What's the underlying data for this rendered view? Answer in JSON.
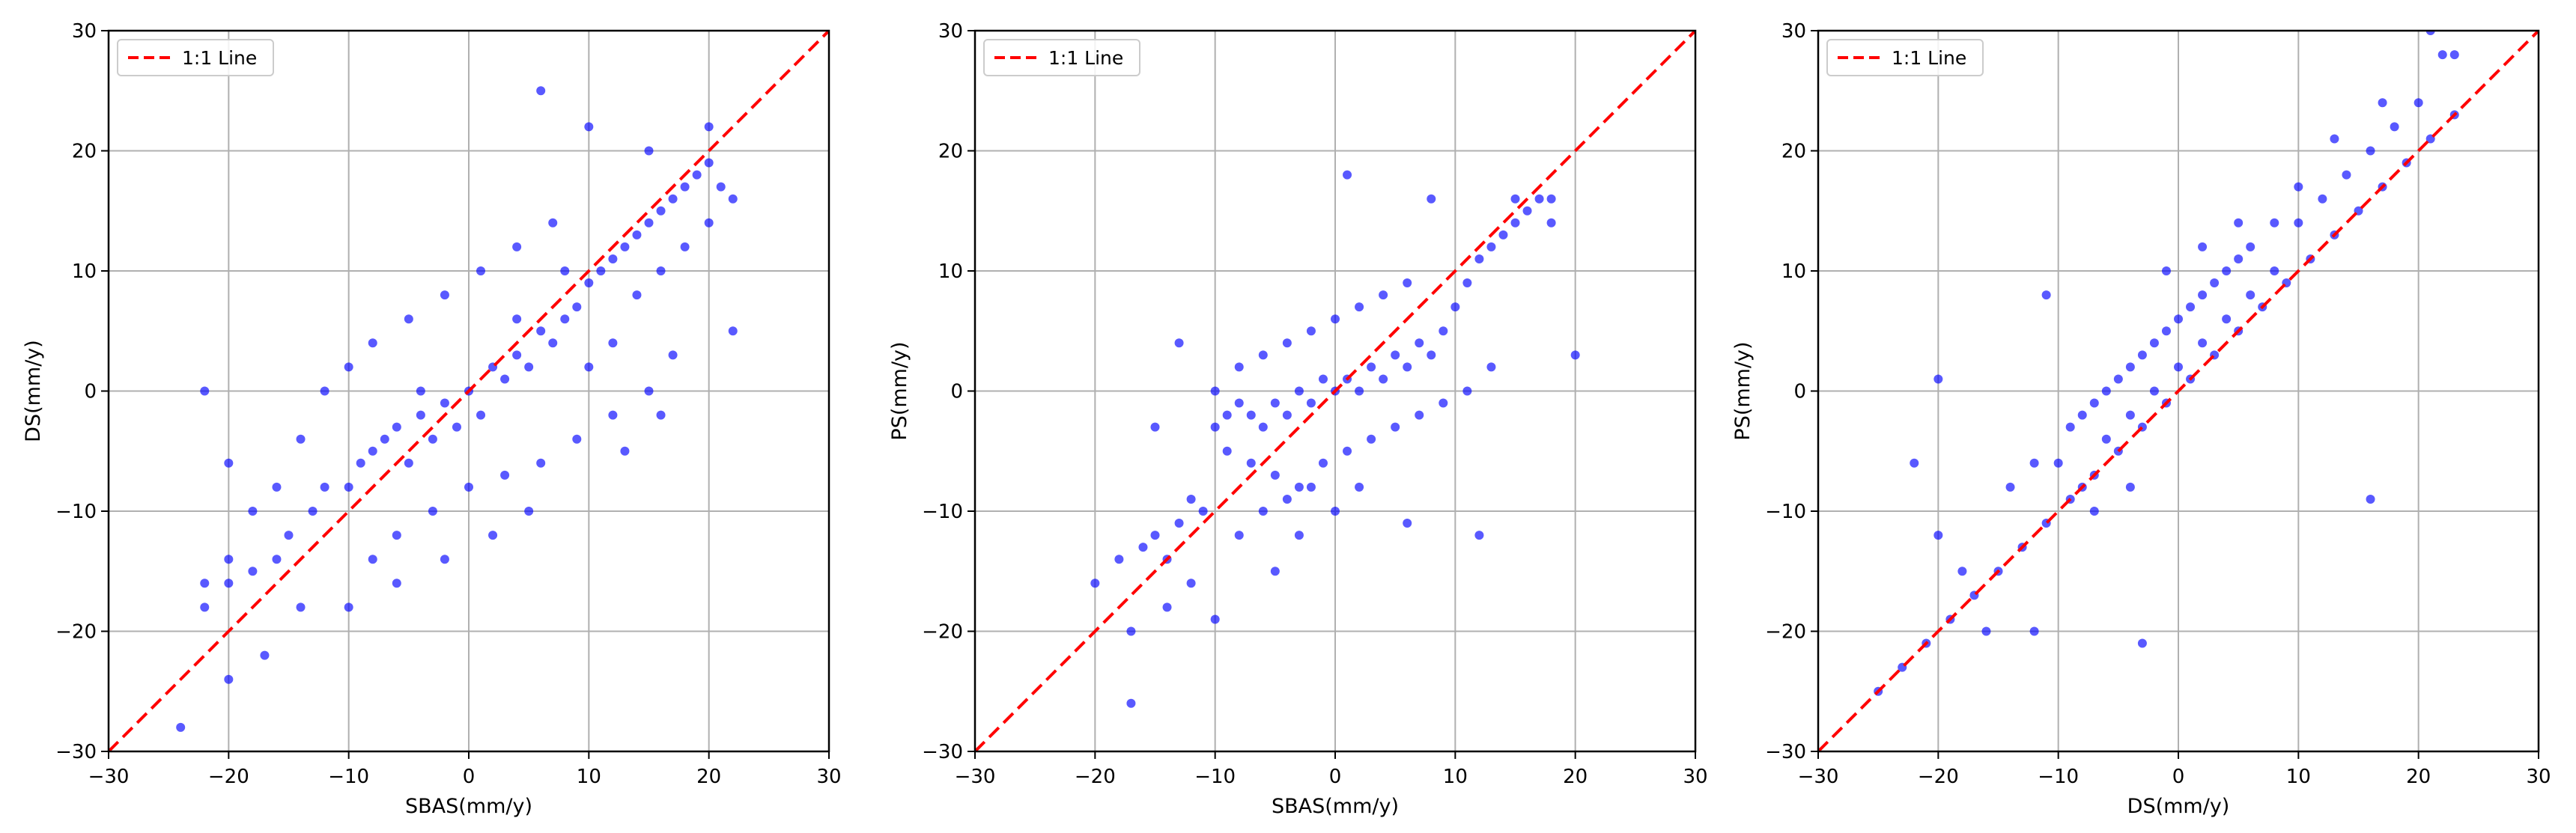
{
  "chart_data": [
    {
      "type": "scatter",
      "xlabel": "SBAS(mm/y)",
      "ylabel": "DS(mm/y)",
      "xlim": [
        -30,
        30
      ],
      "ylim": [
        -30,
        30
      ],
      "xticks": [
        -30,
        -20,
        -10,
        0,
        10,
        20,
        30
      ],
      "yticks": [
        -30,
        -20,
        -10,
        0,
        10,
        20,
        30
      ],
      "grid": true,
      "legend": {
        "position": "top-left",
        "entries": [
          {
            "label": "1:1 Line",
            "color": "#ff0000",
            "style": "dashed"
          }
        ]
      },
      "reference_line": {
        "label": "1:1 Line",
        "x": [
          -30,
          30
        ],
        "y": [
          -30,
          30
        ]
      },
      "series": [
        {
          "color": "#0000ff",
          "points": [
            [
              -22,
              -18
            ],
            [
              -20,
              -16
            ],
            [
              -18,
              -15
            ],
            [
              -16,
              -14
            ],
            [
              -15,
              -12
            ],
            [
              -13,
              -10
            ],
            [
              -12,
              -8
            ],
            [
              -10,
              -8
            ],
            [
              -9,
              -6
            ],
            [
              -8,
              -5
            ],
            [
              -7,
              -4
            ],
            [
              -6,
              -3
            ],
            [
              -5,
              -6
            ],
            [
              -4,
              -2
            ],
            [
              -3,
              -4
            ],
            [
              -2,
              -1
            ],
            [
              -1,
              -3
            ],
            [
              0,
              0
            ],
            [
              1,
              -2
            ],
            [
              2,
              2
            ],
            [
              3,
              1
            ],
            [
              4,
              3
            ],
            [
              5,
              2
            ],
            [
              6,
              5
            ],
            [
              7,
              4
            ],
            [
              8,
              6
            ],
            [
              9,
              7
            ],
            [
              10,
              9
            ],
            [
              11,
              10
            ],
            [
              12,
              11
            ],
            [
              13,
              12
            ],
            [
              14,
              13
            ],
            [
              15,
              14
            ],
            [
              16,
              15
            ],
            [
              17,
              16
            ],
            [
              18,
              17
            ],
            [
              19,
              18
            ],
            [
              20,
              19
            ],
            [
              21,
              17
            ],
            [
              22,
              16
            ],
            [
              -24,
              -28
            ],
            [
              -20,
              -24
            ],
            [
              -17,
              -22
            ],
            [
              -14,
              -18
            ],
            [
              -8,
              -14
            ],
            [
              -6,
              -12
            ],
            [
              -3,
              -10
            ],
            [
              0,
              -8
            ],
            [
              3,
              -7
            ],
            [
              6,
              -6
            ],
            [
              9,
              -4
            ],
            [
              12,
              -2
            ],
            [
              15,
              0
            ],
            [
              -10,
              2
            ],
            [
              -8,
              4
            ],
            [
              -5,
              6
            ],
            [
              -2,
              8
            ],
            [
              1,
              10
            ],
            [
              4,
              12
            ],
            [
              7,
              14
            ],
            [
              -12,
              0
            ],
            [
              -14,
              -4
            ],
            [
              -16,
              -8
            ],
            [
              -18,
              -10
            ],
            [
              -20,
              -14
            ],
            [
              -22,
              -16
            ],
            [
              10,
              2
            ],
            [
              12,
              4
            ],
            [
              14,
              8
            ],
            [
              16,
              10
            ],
            [
              18,
              12
            ],
            [
              20,
              14
            ],
            [
              5,
              -10
            ],
            [
              2,
              -12
            ],
            [
              -2,
              -14
            ],
            [
              -6,
              -16
            ],
            [
              -10,
              -18
            ],
            [
              8,
              10
            ],
            [
              4,
              6
            ],
            [
              -4,
              0
            ],
            [
              6,
              25
            ],
            [
              10,
              22
            ],
            [
              15,
              20
            ],
            [
              20,
              22
            ],
            [
              -22,
              0
            ],
            [
              -20,
              -6
            ],
            [
              13,
              -5
            ],
            [
              16,
              -2
            ],
            [
              17,
              3
            ],
            [
              22,
              5
            ]
          ]
        }
      ]
    },
    {
      "type": "scatter",
      "xlabel": "SBAS(mm/y)",
      "ylabel": "PS(mm/y)",
      "xlim": [
        -30,
        30
      ],
      "ylim": [
        -30,
        30
      ],
      "xticks": [
        -30,
        -20,
        -10,
        0,
        10,
        20,
        30
      ],
      "yticks": [
        -30,
        -20,
        -10,
        0,
        10,
        20,
        30
      ],
      "grid": true,
      "legend": {
        "position": "top-left",
        "entries": [
          {
            "label": "1:1 Line",
            "color": "#ff0000",
            "style": "dashed"
          }
        ]
      },
      "reference_line": {
        "label": "1:1 Line",
        "x": [
          -30,
          30
        ],
        "y": [
          -30,
          30
        ]
      },
      "series": [
        {
          "color": "#0000ff",
          "points": [
            [
              -20,
              -16
            ],
            [
              -18,
              -14
            ],
            [
              -16,
              -13
            ],
            [
              -15,
              -12
            ],
            [
              -14,
              -14
            ],
            [
              -13,
              -11
            ],
            [
              -12,
              -9
            ],
            [
              -11,
              -10
            ],
            [
              -10,
              -3
            ],
            [
              -9,
              -2
            ],
            [
              -8,
              -1
            ],
            [
              -7,
              -2
            ],
            [
              -6,
              -3
            ],
            [
              -5,
              -1
            ],
            [
              -4,
              -2
            ],
            [
              -3,
              0
            ],
            [
              -2,
              -1
            ],
            [
              -1,
              1
            ],
            [
              0,
              0
            ],
            [
              1,
              1
            ],
            [
              2,
              0
            ],
            [
              3,
              2
            ],
            [
              4,
              1
            ],
            [
              5,
              3
            ],
            [
              6,
              2
            ],
            [
              7,
              4
            ],
            [
              8,
              3
            ],
            [
              9,
              5
            ],
            [
              10,
              7
            ],
            [
              11,
              9
            ],
            [
              12,
              11
            ],
            [
              13,
              12
            ],
            [
              14,
              13
            ],
            [
              15,
              14
            ],
            [
              16,
              15
            ],
            [
              17,
              16
            ],
            [
              18,
              16
            ],
            [
              -10,
              0
            ],
            [
              -8,
              2
            ],
            [
              -6,
              3
            ],
            [
              -4,
              4
            ],
            [
              -2,
              5
            ],
            [
              0,
              6
            ],
            [
              2,
              7
            ],
            [
              4,
              8
            ],
            [
              6,
              9
            ],
            [
              -9,
              -5
            ],
            [
              -7,
              -6
            ],
            [
              -5,
              -7
            ],
            [
              -3,
              -8
            ],
            [
              -1,
              -6
            ],
            [
              1,
              -5
            ],
            [
              3,
              -4
            ],
            [
              5,
              -3
            ],
            [
              7,
              -2
            ],
            [
              9,
              -1
            ],
            [
              11,
              0
            ],
            [
              13,
              2
            ],
            [
              -14,
              -18
            ],
            [
              -12,
              -16
            ],
            [
              -10,
              -19
            ],
            [
              -17,
              -20
            ],
            [
              -5,
              -15
            ],
            [
              -3,
              -12
            ],
            [
              0,
              -10
            ],
            [
              2,
              -8
            ],
            [
              6,
              -11
            ],
            [
              -13,
              4
            ],
            [
              -15,
              -3
            ],
            [
              8,
              16
            ],
            [
              1,
              18
            ],
            [
              20,
              3
            ],
            [
              12,
              -12
            ],
            [
              -17,
              -26
            ],
            [
              15,
              16
            ],
            [
              18,
              14
            ],
            [
              -8,
              -12
            ],
            [
              -6,
              -10
            ],
            [
              -4,
              -9
            ],
            [
              -2,
              -8
            ]
          ]
        }
      ]
    },
    {
      "type": "scatter",
      "xlabel": "DS(mm/y)",
      "ylabel": "PS(mm/y)",
      "xlim": [
        -30,
        30
      ],
      "ylim": [
        -30,
        30
      ],
      "xticks": [
        -30,
        -20,
        -10,
        0,
        10,
        20,
        30
      ],
      "yticks": [
        -30,
        -20,
        -10,
        0,
        10,
        20,
        30
      ],
      "grid": true,
      "legend": {
        "position": "top-left",
        "entries": [
          {
            "label": "1:1 Line",
            "color": "#ff0000",
            "style": "dashed"
          }
        ]
      },
      "reference_line": {
        "label": "1:1 Line",
        "x": [
          -30,
          30
        ],
        "y": [
          -30,
          30
        ]
      },
      "series": [
        {
          "color": "#0000ff",
          "points": [
            [
              -25,
              -25
            ],
            [
              -23,
              -23
            ],
            [
              -21,
              -21
            ],
            [
              -19,
              -19
            ],
            [
              -17,
              -17
            ],
            [
              -15,
              -15
            ],
            [
              -13,
              -13
            ],
            [
              -11,
              -11
            ],
            [
              -9,
              -9
            ],
            [
              -7,
              -7
            ],
            [
              -5,
              -5
            ],
            [
              -3,
              -3
            ],
            [
              -1,
              -1
            ],
            [
              1,
              1
            ],
            [
              3,
              3
            ],
            [
              5,
              5
            ],
            [
              7,
              7
            ],
            [
              9,
              9
            ],
            [
              11,
              11
            ],
            [
              13,
              13
            ],
            [
              15,
              15
            ],
            [
              17,
              17
            ],
            [
              19,
              19
            ],
            [
              21,
              21
            ],
            [
              23,
              23
            ],
            [
              -10,
              -6
            ],
            [
              -8,
              -2
            ],
            [
              -6,
              0
            ],
            [
              -4,
              2
            ],
            [
              -2,
              4
            ],
            [
              0,
              6
            ],
            [
              2,
              8
            ],
            [
              4,
              10
            ],
            [
              6,
              12
            ],
            [
              -9,
              -3
            ],
            [
              -7,
              -1
            ],
            [
              -5,
              1
            ],
            [
              -3,
              3
            ],
            [
              -1,
              5
            ],
            [
              1,
              7
            ],
            [
              3,
              9
            ],
            [
              5,
              11
            ],
            [
              -8,
              -8
            ],
            [
              -6,
              -4
            ],
            [
              -4,
              -2
            ],
            [
              -2,
              0
            ],
            [
              0,
              2
            ],
            [
              2,
              4
            ],
            [
              4,
              6
            ],
            [
              6,
              8
            ],
            [
              8,
              10
            ],
            [
              10,
              14
            ],
            [
              12,
              16
            ],
            [
              14,
              18
            ],
            [
              16,
              20
            ],
            [
              18,
              22
            ],
            [
              20,
              24
            ],
            [
              22,
              28
            ],
            [
              -14,
              -8
            ],
            [
              -12,
              -6
            ],
            [
              -20,
              -12
            ],
            [
              -16,
              -20
            ],
            [
              -12,
              -20
            ],
            [
              -18,
              -15
            ],
            [
              -22,
              -6
            ],
            [
              -20,
              1
            ],
            [
              -11,
              8
            ],
            [
              16,
              -9
            ],
            [
              -3,
              -21
            ],
            [
              21,
              30
            ],
            [
              2,
              12
            ],
            [
              -1,
              10
            ],
            [
              5,
              14
            ],
            [
              8,
              14
            ],
            [
              10,
              17
            ],
            [
              13,
              21
            ],
            [
              17,
              24
            ],
            [
              23,
              28
            ],
            [
              -7,
              -10
            ],
            [
              -4,
              -8
            ]
          ]
        }
      ]
    }
  ]
}
